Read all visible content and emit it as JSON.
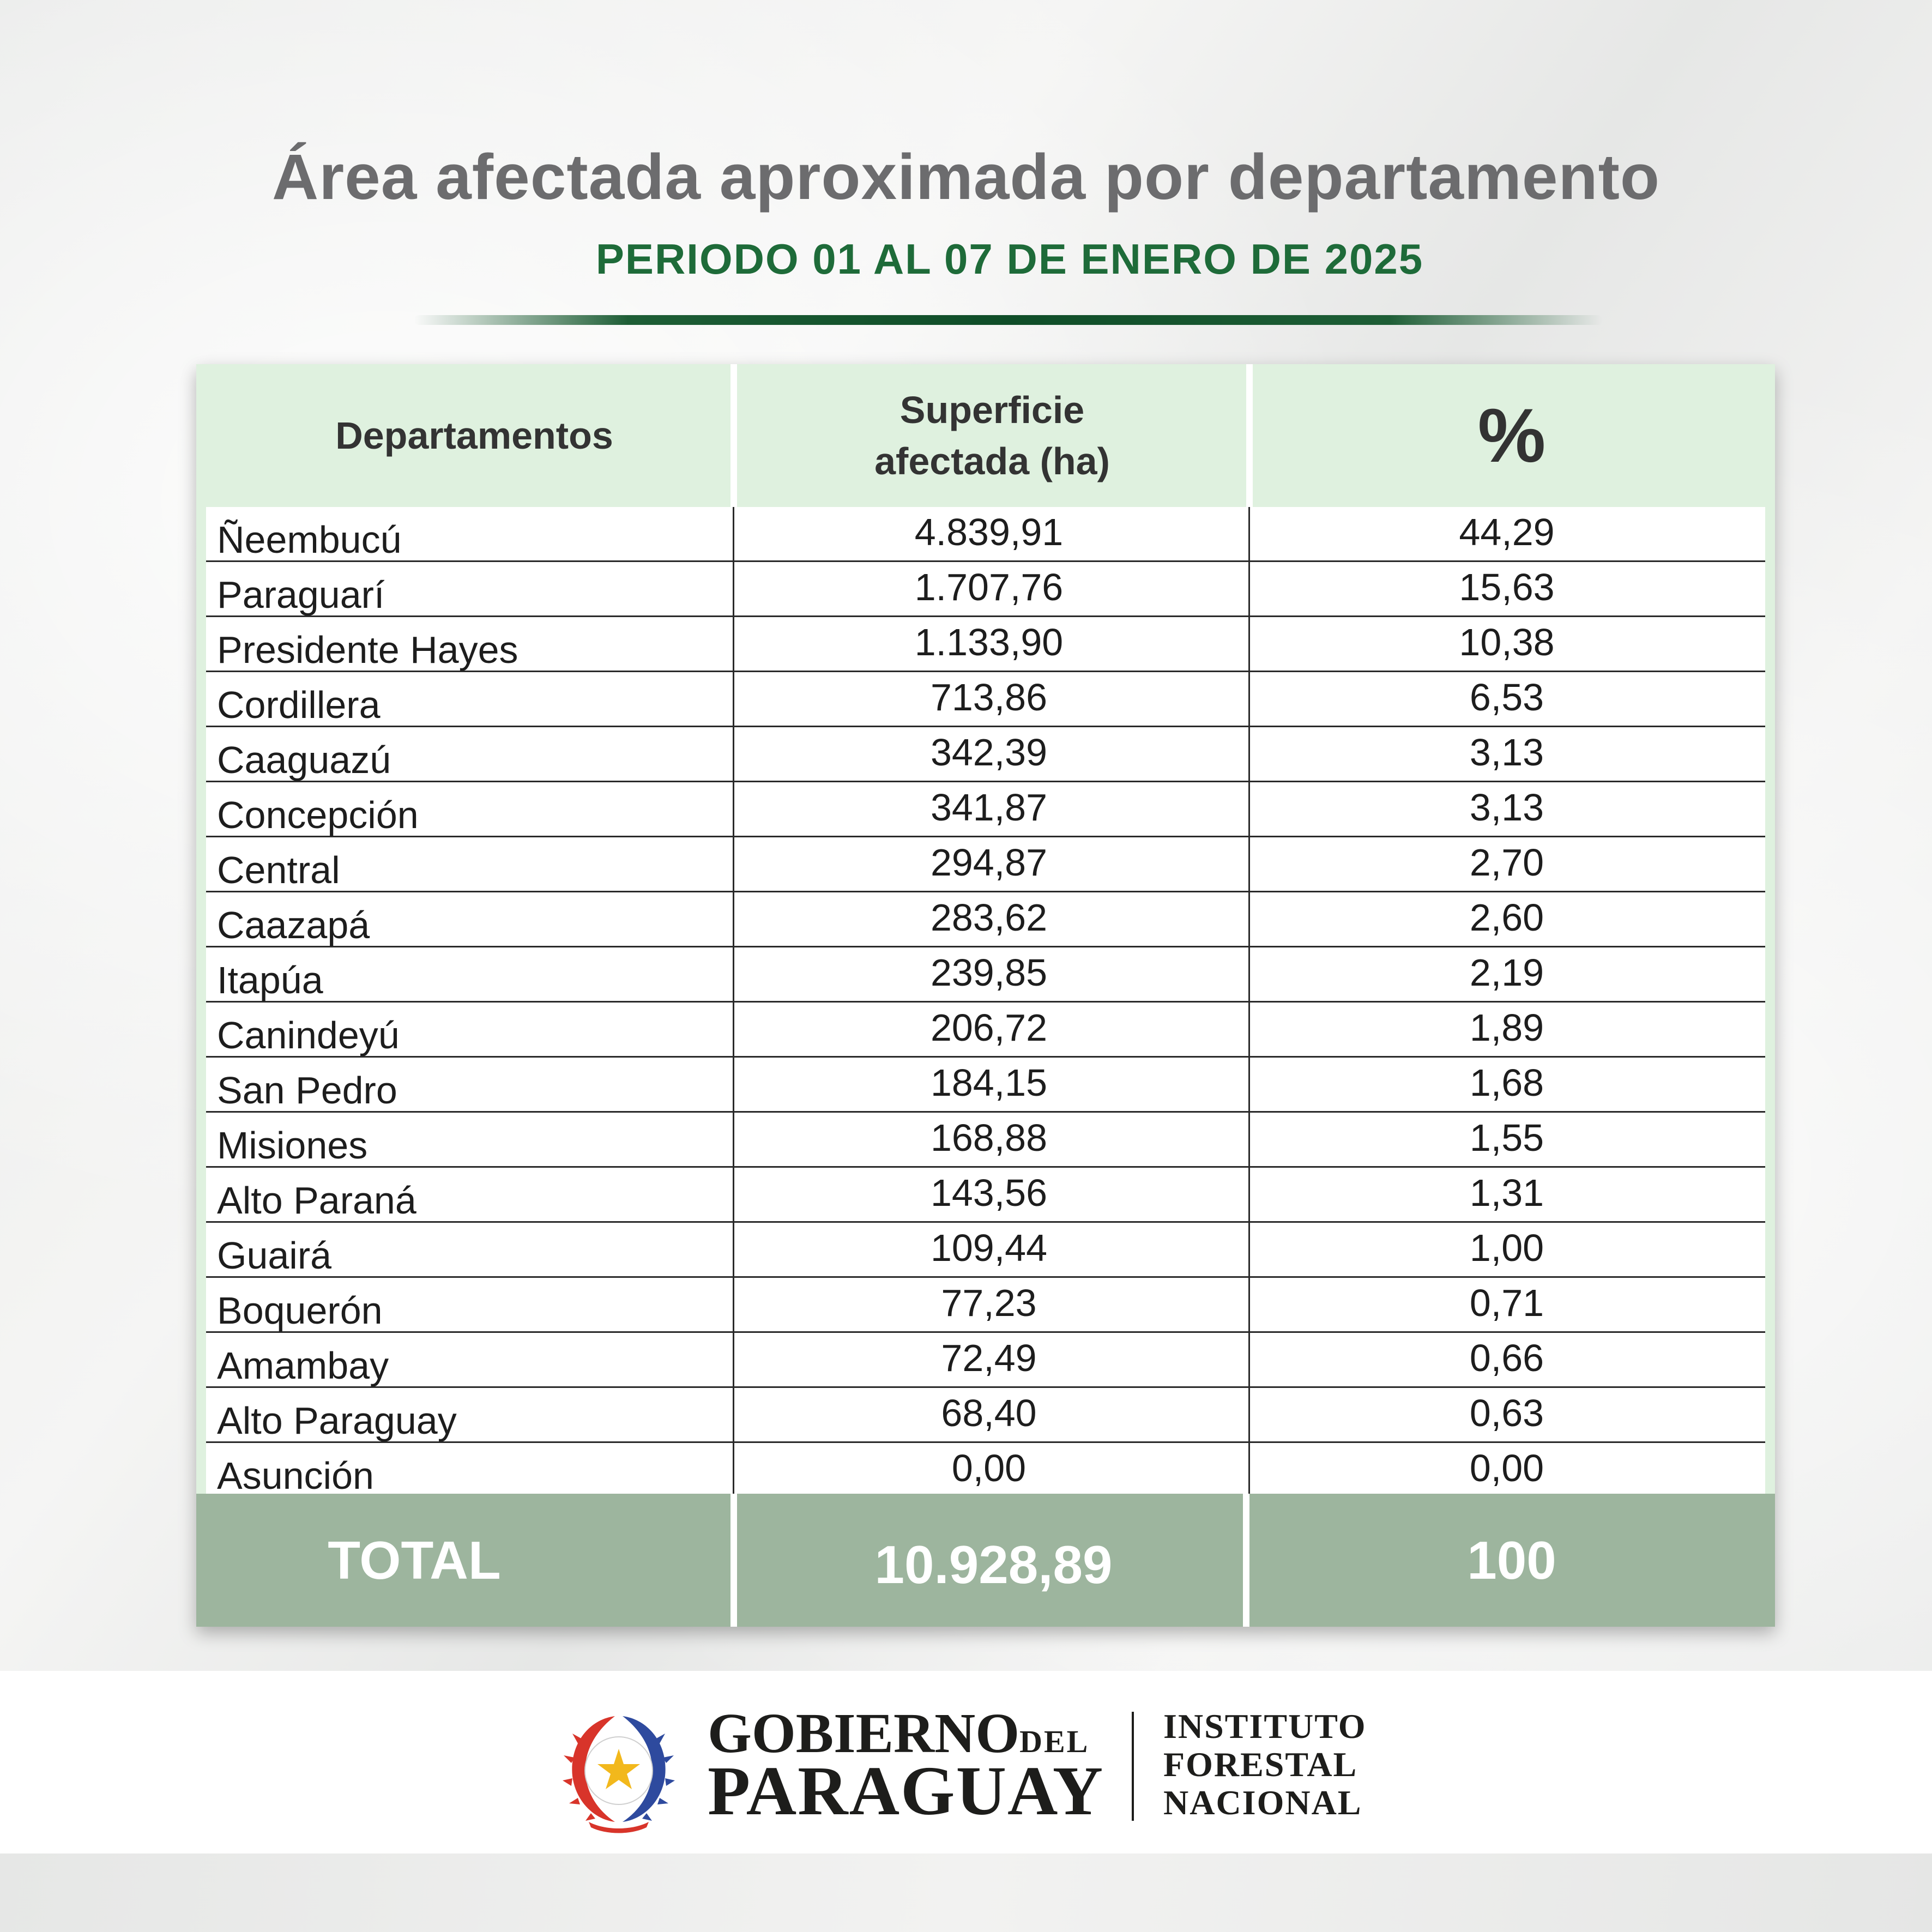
{
  "header": {
    "title": "Área afectada aproximada por departamento",
    "subtitle": "PERIODO 01 AL 07 DE ENERO DE 2025"
  },
  "chart_data": {
    "type": "table",
    "columns": [
      "Departamentos",
      "Superficie afectada (ha)",
      "%"
    ],
    "rows": [
      {
        "departamento": "Ñeembucú",
        "superficie": "4.839,91",
        "pct": "44,29"
      },
      {
        "departamento": "Paraguarí",
        "superficie": "1.707,76",
        "pct": "15,63"
      },
      {
        "departamento": "Presidente Hayes",
        "superficie": "1.133,90",
        "pct": "10,38"
      },
      {
        "departamento": "Cordillera",
        "superficie": "713,86",
        "pct": "6,53"
      },
      {
        "departamento": "Caaguazú",
        "superficie": "342,39",
        "pct": "3,13"
      },
      {
        "departamento": "Concepción",
        "superficie": "341,87",
        "pct": "3,13"
      },
      {
        "departamento": "Central",
        "superficie": "294,87",
        "pct": "2,70"
      },
      {
        "departamento": "Caazapá",
        "superficie": "283,62",
        "pct": "2,60"
      },
      {
        "departamento": "Itapúa",
        "superficie": "239,85",
        "pct": "2,19"
      },
      {
        "departamento": "Canindeyú",
        "superficie": "206,72",
        "pct": "1,89"
      },
      {
        "departamento": "San Pedro",
        "superficie": "184,15",
        "pct": "1,68"
      },
      {
        "departamento": "Misiones",
        "superficie": "168,88",
        "pct": "1,55"
      },
      {
        "departamento": "Alto Paraná",
        "superficie": "143,56",
        "pct": "1,31"
      },
      {
        "departamento": "Guairá",
        "superficie": "109,44",
        "pct": "1,00"
      },
      {
        "departamento": "Boquerón",
        "superficie": "77,23",
        "pct": "0,71"
      },
      {
        "departamento": "Amambay",
        "superficie": "72,49",
        "pct": "0,66"
      },
      {
        "departamento": "Alto Paraguay",
        "superficie": "68,40",
        "pct": "0,63"
      },
      {
        "departamento": "Asunción",
        "superficie": "0,00",
        "pct": "0,00"
      }
    ],
    "total": {
      "label": "TOTAL",
      "superficie": "10.928,89",
      "pct": "100"
    }
  },
  "table_header": {
    "departamentos": "Departamentos",
    "superficie_line1": "Superficie",
    "superficie_line2": "afectada (ha)",
    "pct": "%"
  },
  "footer": {
    "gobierno": "GOBIERNO",
    "del": "DEL",
    "paraguay": "PARAGUAY",
    "inst_line1": "INSTITUTO",
    "inst_line2": "FORESTAL",
    "inst_line3": "NACIONAL",
    "seal_icon": "paraguay-seal-icon"
  },
  "colors": {
    "title": "#6c6c6e",
    "subtitle": "#1e6b39",
    "header_bg": "#dff1df",
    "total_bg": "#9db59e",
    "seal_star": "#f2b81c",
    "seal_red": "#d8342a",
    "seal_blue": "#2e4a9e"
  }
}
